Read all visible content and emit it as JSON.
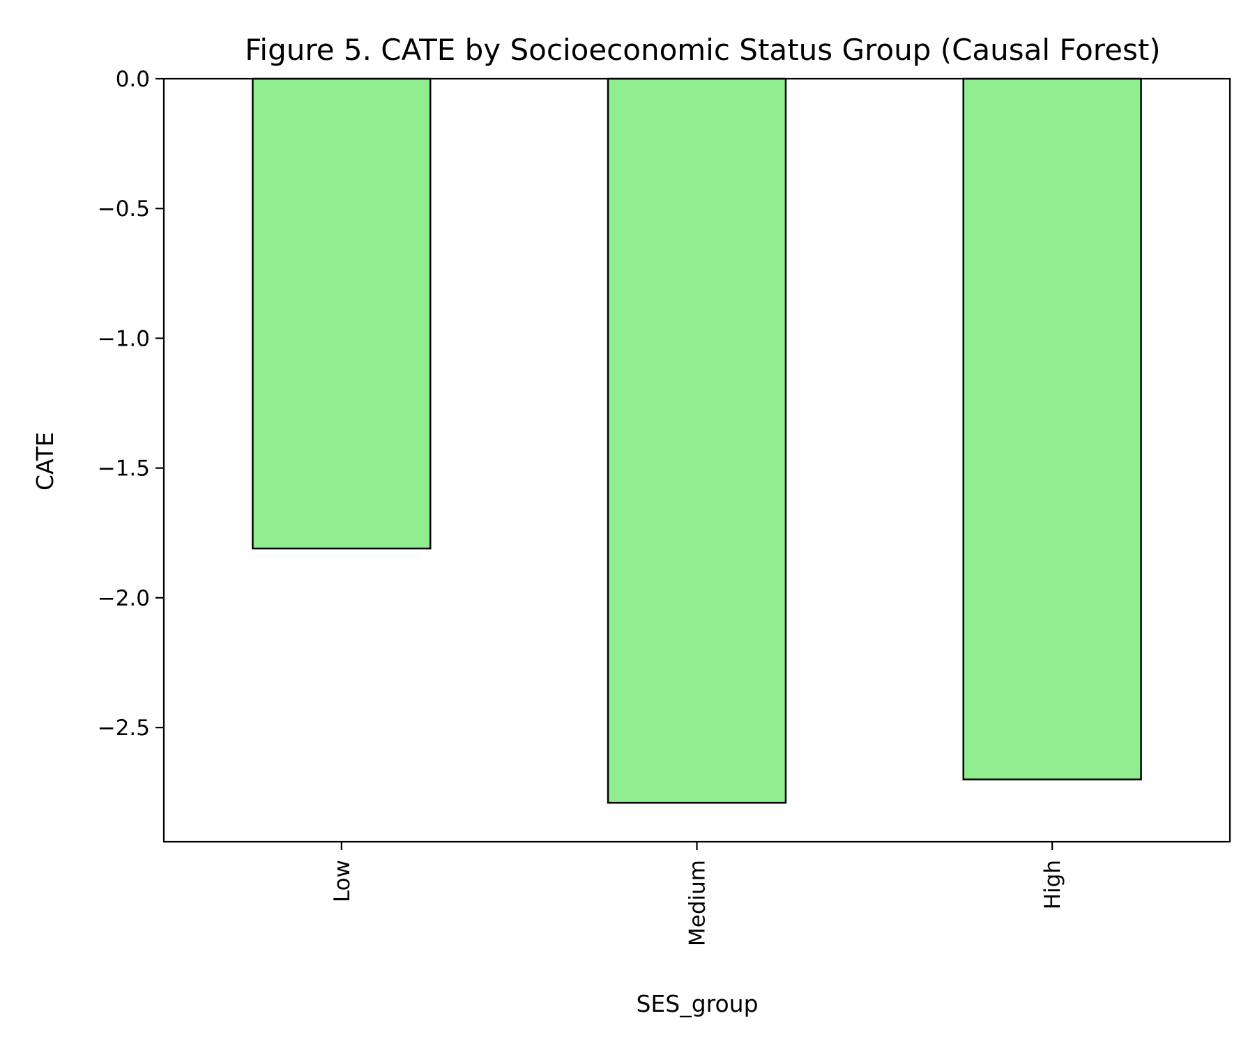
{
  "chart_data": {
    "type": "bar",
    "title": "Figure 5. CATE by Socioeconomic Status Group (Causal Forest)",
    "xlabel": "SES_group",
    "ylabel": "CATE",
    "categories": [
      "Low",
      "Medium",
      "High"
    ],
    "values": [
      -1.81,
      -2.79,
      -2.7
    ],
    "ylim": [
      -2.94,
      0.0
    ],
    "yticks": [
      0.0,
      -0.5,
      -1.0,
      -1.5,
      -2.0,
      -2.5
    ],
    "ytick_labels": [
      "0.0",
      "−0.5",
      "−1.0",
      "−1.5",
      "−2.0",
      "−2.5"
    ],
    "bar_color": "#90ee90",
    "edge_color": "#000000",
    "grid": false,
    "legend": false
  }
}
